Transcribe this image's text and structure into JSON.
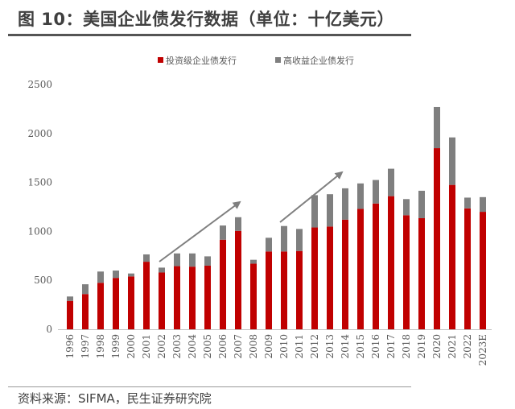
{
  "title": "图 10：美国企业债发行数据（单位：十亿美元）",
  "source": "资料来源：SIFMA，民生证券研究院",
  "chart_data": {
    "type": "bar",
    "stacked": true,
    "title": "",
    "xlabel": "",
    "ylabel": "",
    "ylim": [
      0,
      2500
    ],
    "yticks": [
      0,
      500,
      1000,
      1500,
      2000,
      2500
    ],
    "grid": false,
    "legend_position": "top",
    "categories": [
      "1996",
      "1997",
      "1998",
      "1999",
      "2000",
      "2001",
      "2002",
      "2003",
      "2004",
      "2005",
      "2006",
      "2007",
      "2008",
      "2009",
      "2010",
      "2011",
      "2012",
      "2013",
      "2014",
      "2015",
      "2016",
      "2017",
      "2018",
      "2019",
      "2020",
      "2021",
      "2022",
      "2023E"
    ],
    "series": [
      {
        "name": "投资级企业债发行",
        "color": "#c00000",
        "values": [
          290,
          360,
          475,
          525,
          540,
          690,
          580,
          645,
          640,
          650,
          915,
          1005,
          670,
          795,
          795,
          800,
          1040,
          1050,
          1120,
          1230,
          1285,
          1360,
          1165,
          1135,
          1850,
          1475,
          1235,
          1200
        ]
      },
      {
        "name": "高收益企业债发行",
        "color": "#7f7f7f",
        "values": [
          45,
          100,
          115,
          75,
          30,
          75,
          50,
          130,
          135,
          95,
          145,
          140,
          40,
          140,
          260,
          225,
          330,
          330,
          320,
          260,
          240,
          280,
          165,
          280,
          420,
          485,
          110,
          150
        ]
      }
    ],
    "annotations": [
      {
        "type": "arrow",
        "description": "upward trend arrow",
        "from_category": "2002",
        "to_category": "2007"
      },
      {
        "type": "arrow",
        "description": "upward trend arrow",
        "from_category": "2010",
        "to_category": "2014"
      }
    ]
  }
}
